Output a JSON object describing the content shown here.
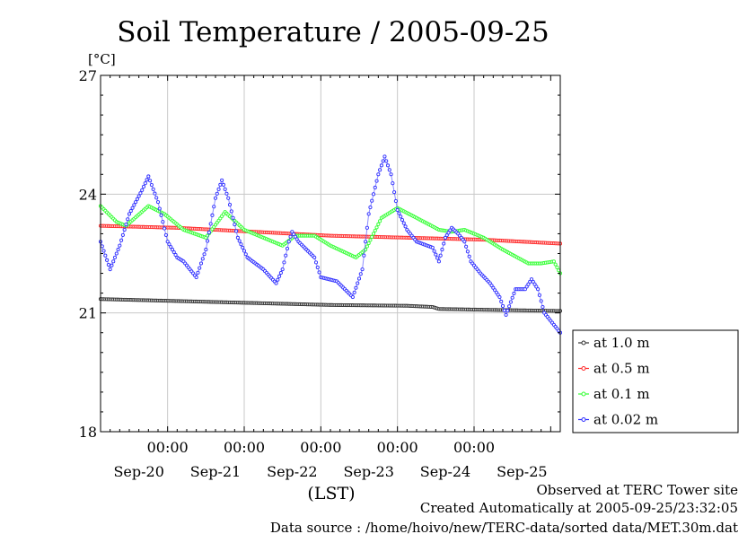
{
  "chart_data": {
    "type": "line",
    "title": "Soil Temperature / 2005-09-25",
    "ylabel": "[°C]",
    "xlabel": "(LST)",
    "ylim": [
      18,
      27
    ],
    "yticks": [
      "18",
      "21",
      "24",
      "27"
    ],
    "xlim": [
      0,
      144
    ],
    "x_time_ticks": [
      {
        "x": 21,
        "label": "00:00"
      },
      {
        "x": 45,
        "label": "00:00"
      },
      {
        "x": 69,
        "label": "00:00"
      },
      {
        "x": 93,
        "label": "00:00"
      },
      {
        "x": 117,
        "label": "00:00"
      }
    ],
    "x_date_labels": [
      {
        "x": 12,
        "label": "Sep-20"
      },
      {
        "x": 36,
        "label": "Sep-21"
      },
      {
        "x": 60,
        "label": "Sep-22"
      },
      {
        "x": 84,
        "label": "Sep-23"
      },
      {
        "x": 108,
        "label": "Sep-24"
      },
      {
        "x": 132,
        "label": "Sep-25"
      }
    ],
    "grid": true,
    "legend_position": "right-bottom",
    "series": [
      {
        "name": "at 1.0 m",
        "color": "#333333",
        "hatch": "#555555",
        "points": [
          [
            0,
            21.35
          ],
          [
            24,
            21.3
          ],
          [
            48,
            21.25
          ],
          [
            72,
            21.2
          ],
          [
            96,
            21.18
          ],
          [
            104,
            21.15
          ],
          [
            106,
            21.1
          ],
          [
            120,
            21.08
          ],
          [
            144,
            21.05
          ]
        ]
      },
      {
        "name": "at 0.5 m",
        "color": "#ff2a2a",
        "hatch": "#ff7070",
        "points": [
          [
            0,
            23.2
          ],
          [
            24,
            23.15
          ],
          [
            48,
            23.05
          ],
          [
            72,
            22.95
          ],
          [
            96,
            22.9
          ],
          [
            120,
            22.85
          ],
          [
            144,
            22.75
          ]
        ]
      },
      {
        "name": "at 0.1 m",
        "color": "#33ff33",
        "hatch": "#66dd66",
        "points": [
          [
            0,
            23.7
          ],
          [
            5,
            23.3
          ],
          [
            8,
            23.2
          ],
          [
            15,
            23.7
          ],
          [
            20,
            23.5
          ],
          [
            26,
            23.1
          ],
          [
            33,
            22.9
          ],
          [
            39,
            23.55
          ],
          [
            45,
            23.1
          ],
          [
            57,
            22.7
          ],
          [
            61,
            22.95
          ],
          [
            67,
            22.95
          ],
          [
            72,
            22.7
          ],
          [
            80,
            22.4
          ],
          [
            83,
            22.6
          ],
          [
            88,
            23.4
          ],
          [
            93,
            23.65
          ],
          [
            99,
            23.4
          ],
          [
            106,
            23.1
          ],
          [
            110,
            23.05
          ],
          [
            114,
            23.1
          ],
          [
            120,
            22.9
          ],
          [
            126,
            22.6
          ],
          [
            134,
            22.25
          ],
          [
            138,
            22.25
          ],
          [
            142,
            22.3
          ],
          [
            144,
            22.0
          ]
        ]
      },
      {
        "name": "at 0.02 m",
        "color": "#3030ff",
        "hatch": "#7a7aff",
        "points": [
          [
            0,
            22.8
          ],
          [
            3,
            22.1
          ],
          [
            6,
            22.7
          ],
          [
            9,
            23.5
          ],
          [
            13,
            24.1
          ],
          [
            15,
            24.45
          ],
          [
            18,
            23.8
          ],
          [
            21,
            22.8
          ],
          [
            24,
            22.4
          ],
          [
            26,
            22.3
          ],
          [
            30,
            21.9
          ],
          [
            33,
            22.6
          ],
          [
            36,
            23.9
          ],
          [
            38,
            24.35
          ],
          [
            40,
            23.9
          ],
          [
            43,
            22.9
          ],
          [
            46,
            22.4
          ],
          [
            51,
            22.1
          ],
          [
            55,
            21.75
          ],
          [
            57,
            22.1
          ],
          [
            59,
            22.8
          ],
          [
            60,
            23.05
          ],
          [
            62,
            22.8
          ],
          [
            67,
            22.4
          ],
          [
            69,
            21.9
          ],
          [
            74,
            21.8
          ],
          [
            79,
            21.4
          ],
          [
            82,
            22.1
          ],
          [
            84,
            23.5
          ],
          [
            87,
            24.5
          ],
          [
            89,
            24.95
          ],
          [
            91,
            24.5
          ],
          [
            93,
            23.6
          ],
          [
            96,
            23.1
          ],
          [
            99,
            22.8
          ],
          [
            104,
            22.65
          ],
          [
            106,
            22.3
          ],
          [
            108,
            22.9
          ],
          [
            110,
            23.15
          ],
          [
            112,
            23.0
          ],
          [
            114,
            22.8
          ],
          [
            116,
            22.3
          ],
          [
            119,
            22.0
          ],
          [
            122,
            21.75
          ],
          [
            125,
            21.4
          ],
          [
            127,
            20.95
          ],
          [
            130,
            21.6
          ],
          [
            133,
            21.6
          ],
          [
            135,
            21.85
          ],
          [
            137,
            21.6
          ],
          [
            139,
            21.0
          ],
          [
            144,
            20.5
          ]
        ]
      }
    ]
  },
  "footer": {
    "observed": "Observed at TERC Tower site",
    "created": "Created Automatically at 2005-09-25/23:32:05",
    "source": "Data source : /home/hoivo/new/TERC-data/sorted  data/MET.30m.dat"
  }
}
